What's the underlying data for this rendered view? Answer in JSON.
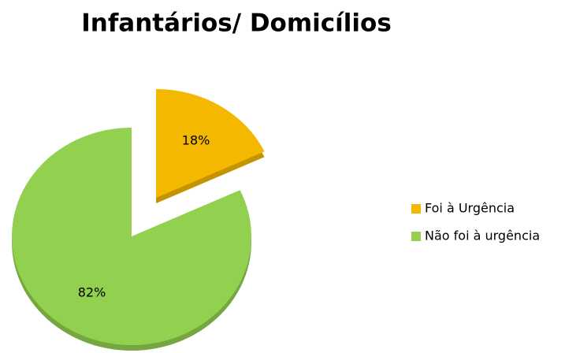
{
  "chart_data": {
    "type": "pie",
    "title": "Infantários/ Domicílios",
    "categories": [
      "Foi à Urgência",
      "Não foi à urgência"
    ],
    "values": [
      18,
      82
    ],
    "value_labels": [
      "18%",
      "82%"
    ],
    "colors": [
      "#f5b800",
      "#92d050"
    ],
    "legend": "right"
  }
}
